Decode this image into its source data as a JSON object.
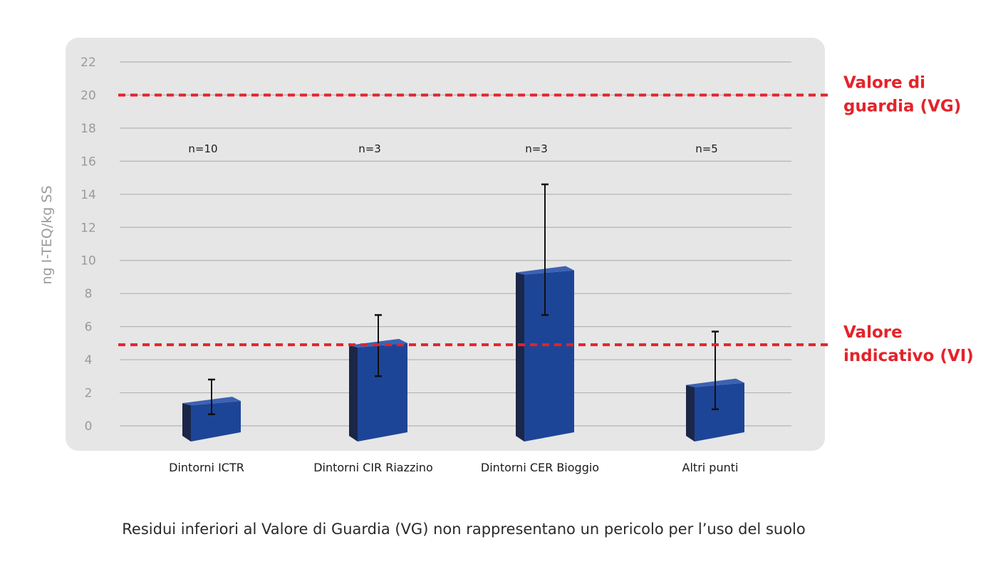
{
  "chart_data": {
    "type": "bar",
    "ylabel": "ng I-TEQ/kg SS",
    "ylim": [
      0,
      22
    ],
    "yticks": [
      0,
      2,
      4,
      6,
      8,
      10,
      12,
      14,
      16,
      18,
      20,
      22
    ],
    "grid": true,
    "categories": [
      "Dintorni ICTR",
      "Dintorni CIR Riazzino",
      "Dintorni CER Bioggio",
      "Altri punti"
    ],
    "values": [
      1.5,
      5.0,
      9.4,
      2.6
    ],
    "error_low": [
      0.7,
      3.0,
      6.7,
      1.0
    ],
    "error_high": [
      2.8,
      6.7,
      14.6,
      5.7
    ],
    "n_labels": [
      "n=10",
      "n=3",
      "n=3",
      "n=5"
    ],
    "reference_lines": [
      {
        "value": 20,
        "label_lines": [
          "Valore di",
          "guardia (VG)"
        ],
        "color": "#e3232b"
      },
      {
        "value": 4.9,
        "label_lines": [
          "Valore",
          "indicativo (VI)"
        ],
        "color": "#e3232b"
      }
    ],
    "bar_color": "#1d4597",
    "bar_top_color": "#3d62b3",
    "bar_side_color": "#1b2748",
    "panel_color": "#e6e6e6"
  },
  "caption": "Residui inferiori al Valore di Guardia (VG) non rappresentano un pericolo per l’uso del suolo"
}
